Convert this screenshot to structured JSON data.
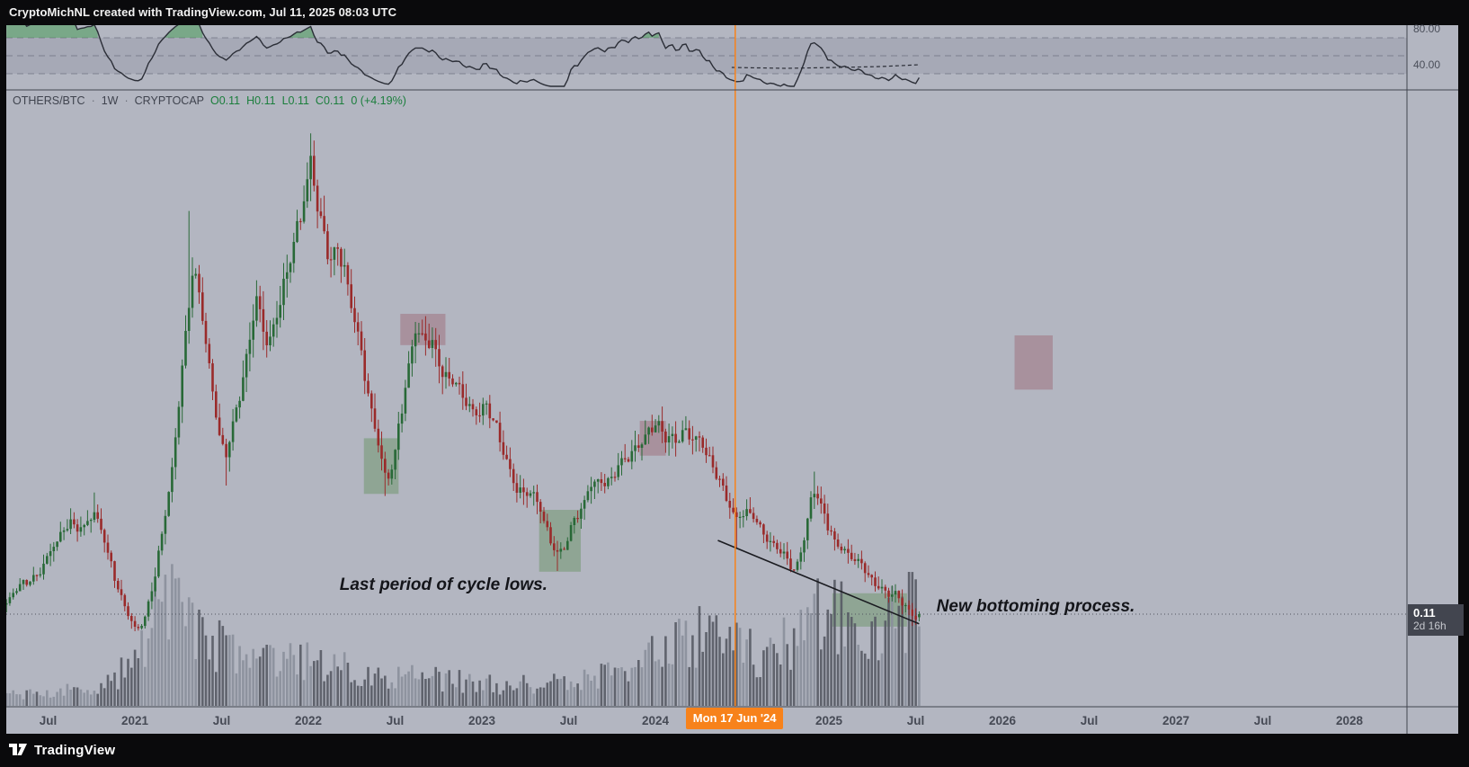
{
  "header": {
    "title": "CryptoMichNL created with TradingView.com, Jul 11, 2025 08:03 UTC"
  },
  "legend": {
    "symbol": "OTHERS/BTC",
    "separator": "·",
    "timeframe": "1W",
    "source": "CRYPTOCAP",
    "open": "O0.11",
    "high": "H0.11",
    "low": "L0.11",
    "close": "C0.11",
    "change": "0 (+4.19%)"
  },
  "indicator_pane": {
    "upper_label": "80.00",
    "lower_label": "40.00"
  },
  "price_scale": {
    "last_price": "0.11",
    "countdown": "2d 16h"
  },
  "time_axis": {
    "ticks": [
      {
        "label": "Jul",
        "t": 2020.5
      },
      {
        "label": "2021",
        "t": 2021.0
      },
      {
        "label": "Jul",
        "t": 2021.5
      },
      {
        "label": "2022",
        "t": 2022.0
      },
      {
        "label": "Jul",
        "t": 2022.5
      },
      {
        "label": "2023",
        "t": 2023.0
      },
      {
        "label": "Jul",
        "t": 2023.5
      },
      {
        "label": "2024",
        "t": 2024.0
      },
      {
        "label": "Jul",
        "t": 2024.5
      },
      {
        "label": "2025",
        "t": 2025.0
      },
      {
        "label": "Jul",
        "t": 2025.5
      },
      {
        "label": "2026",
        "t": 2026.0
      },
      {
        "label": "Jul",
        "t": 2026.5
      },
      {
        "label": "2027",
        "t": 2027.0
      },
      {
        "label": "Jul",
        "t": 2027.5
      },
      {
        "label": "2028",
        "t": 2028.0
      }
    ],
    "event_badge": {
      "label": "Mon 17 Jun '24",
      "t": 2024.46
    }
  },
  "footer": {
    "logo_text": "TradingView"
  },
  "annotations": [
    {
      "text": "Last period of cycle lows.",
      "t": 2022.18,
      "p": 0.145
    },
    {
      "text": "New bottoming process.",
      "t": 2025.62,
      "p": 0.114
    }
  ],
  "colors": {
    "background": "#b3b6c1",
    "frame": "#0a0a0c",
    "accent_orange": "#f7821b",
    "candle_up": "#286937",
    "candle_down": "#9a2a2a",
    "volume_up": "#8a8f9b",
    "volume_down": "#565a64",
    "box_green": "#6c9367",
    "box_red": "#9e6b79",
    "rsi_line": "#2b2e37",
    "rsi_overbought_fill": "#3f9950",
    "grid_dash": "#5a5e6e",
    "separator": "#42454f",
    "legend_green": "#1b7e3c",
    "axis_text": "#464a55"
  },
  "chart_data": {
    "type": "candlestick",
    "symbol": "OTHERS/BTC",
    "timeframe": "1W",
    "source": "CRYPTOCAP",
    "t_start": 2020.26,
    "t_end": 2025.52,
    "weeks": 271,
    "price_range_implied": [
      0.05,
      0.85
    ],
    "last_candle": {
      "open": 0.1056,
      "close": 0.11,
      "change_pct": 4.19
    },
    "price_line_p": 0.11,
    "event_vline_t": 2024.46,
    "price_anchors": [
      [
        2020.26,
        0.125
      ],
      [
        2020.35,
        0.15
      ],
      [
        2020.45,
        0.175
      ],
      [
        2020.55,
        0.21
      ],
      [
        2020.63,
        0.245
      ],
      [
        2020.7,
        0.235
      ],
      [
        2020.77,
        0.25
      ],
      [
        2020.82,
        0.22
      ],
      [
        2020.88,
        0.17
      ],
      [
        2020.94,
        0.125
      ],
      [
        2021.0,
        0.085
      ],
      [
        2021.05,
        0.095
      ],
      [
        2021.1,
        0.15
      ],
      [
        2021.16,
        0.23
      ],
      [
        2021.22,
        0.32
      ],
      [
        2021.27,
        0.45
      ],
      [
        2021.31,
        0.56
      ],
      [
        2021.34,
        0.62
      ],
      [
        2021.37,
        0.58
      ],
      [
        2021.4,
        0.52
      ],
      [
        2021.44,
        0.44
      ],
      [
        2021.48,
        0.37
      ],
      [
        2021.52,
        0.335
      ],
      [
        2021.56,
        0.38
      ],
      [
        2021.61,
        0.44
      ],
      [
        2021.66,
        0.5
      ],
      [
        2021.7,
        0.56
      ],
      [
        2021.73,
        0.52
      ],
      [
        2021.77,
        0.5
      ],
      [
        2021.81,
        0.54
      ],
      [
        2021.86,
        0.59
      ],
      [
        2021.91,
        0.63
      ],
      [
        2021.96,
        0.68
      ],
      [
        2022.0,
        0.745
      ],
      [
        2022.02,
        0.775
      ],
      [
        2022.05,
        0.71
      ],
      [
        2022.09,
        0.66
      ],
      [
        2022.13,
        0.61
      ],
      [
        2022.17,
        0.63
      ],
      [
        2022.21,
        0.6
      ],
      [
        2022.26,
        0.55
      ],
      [
        2022.31,
        0.48
      ],
      [
        2022.36,
        0.4
      ],
      [
        2022.41,
        0.345
      ],
      [
        2022.45,
        0.3
      ],
      [
        2022.49,
        0.33
      ],
      [
        2022.53,
        0.4
      ],
      [
        2022.58,
        0.47
      ],
      [
        2022.62,
        0.52
      ],
      [
        2022.66,
        0.5
      ],
      [
        2022.71,
        0.51
      ],
      [
        2022.75,
        0.475
      ],
      [
        2022.8,
        0.45
      ],
      [
        2022.85,
        0.435
      ],
      [
        2022.9,
        0.415
      ],
      [
        2022.96,
        0.4
      ],
      [
        2023.02,
        0.41
      ],
      [
        2023.07,
        0.38
      ],
      [
        2023.12,
        0.345
      ],
      [
        2023.17,
        0.31
      ],
      [
        2023.22,
        0.29
      ],
      [
        2023.28,
        0.28
      ],
      [
        2023.33,
        0.26
      ],
      [
        2023.38,
        0.225
      ],
      [
        2023.43,
        0.2
      ],
      [
        2023.48,
        0.21
      ],
      [
        2023.53,
        0.24
      ],
      [
        2023.58,
        0.26
      ],
      [
        2023.63,
        0.3
      ],
      [
        2023.68,
        0.31
      ],
      [
        2023.72,
        0.295
      ],
      [
        2023.77,
        0.31
      ],
      [
        2023.82,
        0.33
      ],
      [
        2023.87,
        0.35
      ],
      [
        2023.92,
        0.365
      ],
      [
        2023.97,
        0.375
      ],
      [
        2024.02,
        0.38
      ],
      [
        2024.07,
        0.36
      ],
      [
        2024.12,
        0.37
      ],
      [
        2024.17,
        0.375
      ],
      [
        2024.22,
        0.36
      ],
      [
        2024.27,
        0.35
      ],
      [
        2024.32,
        0.33
      ],
      [
        2024.37,
        0.31
      ],
      [
        2024.42,
        0.27
      ],
      [
        2024.46,
        0.24
      ],
      [
        2024.5,
        0.25
      ],
      [
        2024.55,
        0.26
      ],
      [
        2024.6,
        0.24
      ],
      [
        2024.65,
        0.215
      ],
      [
        2024.7,
        0.2
      ],
      [
        2024.75,
        0.19
      ],
      [
        2024.8,
        0.175
      ],
      [
        2024.85,
        0.21
      ],
      [
        2024.88,
        0.25
      ],
      [
        2024.91,
        0.285
      ],
      [
        2024.94,
        0.27
      ],
      [
        2024.98,
        0.245
      ],
      [
        2025.02,
        0.225
      ],
      [
        2025.06,
        0.21
      ],
      [
        2025.1,
        0.2
      ],
      [
        2025.15,
        0.185
      ],
      [
        2025.2,
        0.175
      ],
      [
        2025.25,
        0.16
      ],
      [
        2025.3,
        0.15
      ],
      [
        2025.34,
        0.14
      ],
      [
        2025.38,
        0.135
      ],
      [
        2025.42,
        0.125
      ],
      [
        2025.46,
        0.115
      ],
      [
        2025.49,
        0.106
      ],
      [
        2025.52,
        0.11
      ]
    ],
    "wick_events": [
      {
        "t": 2020.77,
        "dir": "up",
        "p": 0.285
      },
      {
        "t": 2021.31,
        "dir": "up",
        "p": 0.69
      },
      {
        "t": 2021.52,
        "dir": "down",
        "p": 0.295
      },
      {
        "t": 2022.45,
        "dir": "down",
        "p": 0.28
      },
      {
        "t": 2023.43,
        "dir": "down",
        "p": 0.172
      },
      {
        "t": 2024.46,
        "dir": "down",
        "p": 0.205
      },
      {
        "t": 2024.91,
        "dir": "up",
        "p": 0.315
      },
      {
        "t": 2025.49,
        "dir": "down",
        "p": 0.093
      }
    ],
    "volume_profile": [
      [
        2020.26,
        18
      ],
      [
        2020.8,
        28
      ],
      [
        2020.95,
        60
      ],
      [
        2021.05,
        110
      ],
      [
        2021.15,
        165
      ],
      [
        2021.3,
        150
      ],
      [
        2021.45,
        110
      ],
      [
        2021.6,
        85
      ],
      [
        2021.8,
        72
      ],
      [
        2022.0,
        78
      ],
      [
        2022.2,
        62
      ],
      [
        2022.5,
        50
      ],
      [
        2022.8,
        42
      ],
      [
        2023.1,
        36
      ],
      [
        2023.4,
        38
      ],
      [
        2023.7,
        48
      ],
      [
        2023.95,
        75
      ],
      [
        2024.1,
        95
      ],
      [
        2024.25,
        115
      ],
      [
        2024.45,
        95
      ],
      [
        2024.6,
        85
      ],
      [
        2024.8,
        105
      ],
      [
        2024.95,
        155
      ],
      [
        2025.1,
        135
      ],
      [
        2025.3,
        145
      ],
      [
        2025.5,
        150
      ]
    ],
    "boxes": [
      {
        "t1": 2022.32,
        "p1": 0.283,
        "t2": 2022.52,
        "p2": 0.363,
        "kind": "green"
      },
      {
        "t1": 2022.53,
        "p1": 0.497,
        "t2": 2022.79,
        "p2": 0.542,
        "kind": "red"
      },
      {
        "t1": 2023.33,
        "p1": 0.171,
        "t2": 2023.57,
        "p2": 0.26,
        "kind": "green"
      },
      {
        "t1": 2023.91,
        "p1": 0.338,
        "t2": 2024.06,
        "p2": 0.388,
        "kind": "red"
      },
      {
        "t1": 2025.02,
        "p1": 0.092,
        "t2": 2025.45,
        "p2": 0.14,
        "kind": "green"
      },
      {
        "t1": 2026.07,
        "p1": 0.433,
        "t2": 2026.29,
        "p2": 0.511,
        "kind": "red"
      }
    ],
    "trendline": {
      "t1": 2024.36,
      "p1": 0.216,
      "t2": 2025.52,
      "p2": 0.096
    },
    "rsi": {
      "period": 14,
      "scale_labels": [
        80,
        40
      ],
      "dashed_levels": [
        70,
        50,
        30
      ],
      "band": [
        30,
        70
      ],
      "ma_dashed": [
        [
          2024.44,
          37
        ],
        [
          2024.75,
          36
        ],
        [
          2025.05,
          37
        ],
        [
          2025.3,
          38
        ],
        [
          2025.52,
          40
        ]
      ]
    }
  }
}
